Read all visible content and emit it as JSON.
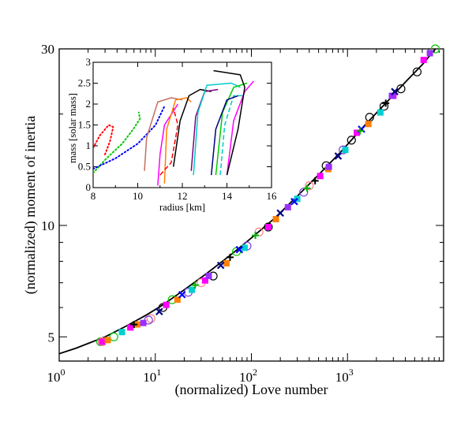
{
  "chart_data": [
    {
      "type": "scatter",
      "title": "",
      "xlabel": "(normalized) Love number",
      "ylabel": "(normalized) moment of inertia",
      "x_scale": "log",
      "y_scale": "log",
      "xlim": [
        1,
        10000
      ],
      "ylim": [
        4.3,
        30
      ],
      "x_ticks": [
        {
          "value": 1,
          "base": "10",
          "exp": "0"
        },
        {
          "value": 10,
          "base": "10",
          "exp": "1"
        },
        {
          "value": 100,
          "base": "10",
          "exp": "2"
        },
        {
          "value": 1000,
          "base": "10",
          "exp": "3"
        }
      ],
      "y_ticks": [
        {
          "value": 5,
          "label": "5"
        },
        {
          "value": 10,
          "label": "10"
        },
        {
          "value": 30,
          "label": "30"
        }
      ],
      "fit_curve": {
        "color": "#000000",
        "x": [
          1,
          1.5,
          2,
          3,
          5,
          8,
          12,
          20,
          35,
          60,
          100,
          170,
          300,
          500,
          850,
          1500,
          2500,
          4000,
          6000,
          8500
        ],
        "y": [
          4.5,
          4.66,
          4.8,
          5.0,
          5.35,
          5.72,
          6.1,
          6.7,
          7.45,
          8.3,
          9.25,
          10.4,
          12.0,
          13.7,
          15.8,
          18.6,
          21.4,
          24.4,
          27.2,
          30.3
        ]
      },
      "series": [
        {
          "marker": "circle-open",
          "color": "#000000",
          "x": [
            12,
            40,
            150,
            600,
            1100,
            1700,
            2400,
            3600,
            5300
          ],
          "y": [
            6.0,
            7.3,
            9.9,
            14.5,
            17.0,
            19.6,
            21.0,
            23.4,
            26.0
          ]
        },
        {
          "marker": "circle-open",
          "color": "#00c800",
          "x": [
            2.7,
            3.7,
            15,
            70,
            8200
          ],
          "y": [
            4.85,
            5.0,
            6.3,
            8.5,
            30.0
          ]
        },
        {
          "marker": "circle-open",
          "color": "#ff8080",
          "x": [
            2.8,
            9,
            30,
            120,
            400
          ],
          "y": [
            4.85,
            5.6,
            7.0,
            9.6,
            12.8
          ]
        },
        {
          "marker": "circle-open",
          "color": "#7b3fe0",
          "x": [
            8.5,
            22,
            90,
            350,
            900
          ],
          "y": [
            5.55,
            6.6,
            8.8,
            12.3,
            16.0
          ]
        },
        {
          "marker": "square-filled",
          "color": "#ff00ff",
          "x": [
            2.8,
            5.5,
            13,
            33,
            150,
            520,
            1250,
            3000,
            6200
          ],
          "y": [
            4.85,
            5.3,
            6.1,
            7.1,
            9.9,
            13.6,
            17.8,
            22.4,
            28.0
          ]
        },
        {
          "marker": "square-filled",
          "color": "#ff8000",
          "x": [
            3.2,
            6.5,
            17,
            55,
            180,
            630,
            1650
          ],
          "y": [
            4.9,
            5.4,
            6.3,
            7.9,
            10.4,
            14.2,
            18.8
          ]
        },
        {
          "marker": "square-filled",
          "color": "#00d0d0",
          "x": [
            4.5,
            24,
            85,
            300,
            950,
            2200
          ],
          "y": [
            5.15,
            6.7,
            8.7,
            11.8,
            16.0,
            20.2
          ]
        },
        {
          "marker": "square-filled",
          "color": "#9b30ff",
          "x": [
            7.5,
            36,
            240,
            640,
            2900,
            7200
          ],
          "y": [
            5.45,
            7.3,
            11.2,
            14.4,
            22.4,
            29.2
          ]
        },
        {
          "marker": "x-cross",
          "color": "#000080",
          "x": [
            11,
            48,
            200,
            800,
            3100
          ],
          "y": [
            5.85,
            7.8,
            10.8,
            15.4,
            23.0
          ]
        },
        {
          "marker": "x-cross",
          "color": "#0000ff",
          "x": [
            19,
            75,
            280,
            1400
          ],
          "y": [
            6.5,
            8.6,
            11.6,
            18.2
          ]
        },
        {
          "marker": "plus",
          "color": "#00b000",
          "x": [
            26,
            110,
            380,
            1350
          ],
          "y": [
            6.9,
            9.4,
            12.6,
            18.0
          ]
        },
        {
          "marker": "plus",
          "color": "#000000",
          "x": [
            6,
            60,
            460,
            2500
          ],
          "y": [
            5.4,
            8.2,
            13.2,
            21.4
          ]
        }
      ]
    },
    {
      "type": "line",
      "title": "",
      "xlabel": "radius [km]",
      "ylabel": "mass [solar mass]",
      "xlim": [
        8,
        16
      ],
      "ylim": [
        0,
        3
      ],
      "x_ticks": [
        "8",
        "10",
        "12",
        "14",
        "16"
      ],
      "y_ticks": [
        "0",
        "0.5",
        "1",
        "1.5",
        "2",
        "2.5",
        "3"
      ],
      "series": [
        {
          "color": "#ff0000",
          "style": "dotted",
          "x": [
            8.0,
            8.3,
            8.7,
            8.9,
            8.75,
            8.5
          ],
          "y": [
            0.95,
            1.25,
            1.5,
            1.45,
            1.1,
            0.75
          ]
        },
        {
          "color": "#00cc00",
          "style": "dotted",
          "x": [
            8.0,
            8.6,
            9.3,
            9.8,
            10.1,
            10.05
          ],
          "y": [
            0.35,
            0.7,
            1.05,
            1.4,
            1.65,
            1.8
          ]
        },
        {
          "color": "#0000ff",
          "style": "dotted",
          "x": [
            8.0,
            9.0,
            10.0,
            10.8,
            11.2
          ],
          "y": [
            0.45,
            0.7,
            1.05,
            1.5,
            1.95
          ]
        },
        {
          "color": "#c07060",
          "style": "solid",
          "x": [
            10.3,
            10.4,
            10.9,
            11.5,
            12.0
          ],
          "y": [
            0.4,
            1.2,
            2.05,
            2.15,
            2.1
          ]
        },
        {
          "color": "#ff00ff",
          "style": "solid",
          "x": [
            10.9,
            11.0,
            11.2,
            11.8
          ],
          "y": [
            0.05,
            0.8,
            1.5,
            2.0
          ]
        },
        {
          "color": "#ff8000",
          "style": "solid",
          "x": [
            11.2,
            11.3,
            11.7,
            12.2,
            12.4
          ],
          "y": [
            0.1,
            1.4,
            2.1,
            2.15,
            2.05
          ]
        },
        {
          "color": "#ff0000",
          "style": "dashed",
          "x": [
            11.0,
            11.5,
            11.8,
            11.6
          ],
          "y": [
            0.3,
            0.6,
            1.5,
            1.9
          ]
        },
        {
          "color": "#000000",
          "style": "solid",
          "x": [
            11.6,
            11.9,
            12.3,
            12.8,
            13.3
          ],
          "y": [
            0.5,
            1.6,
            2.2,
            2.35,
            2.3
          ]
        },
        {
          "color": "#800080",
          "style": "solid",
          "x": [
            12.4,
            12.6,
            13.0,
            13.6
          ],
          "y": [
            0.4,
            1.7,
            2.3,
            2.35
          ]
        },
        {
          "color": "#00cccc",
          "style": "solid",
          "x": [
            12.5,
            12.7,
            13.1,
            14.2,
            14.6
          ],
          "y": [
            0.3,
            1.8,
            2.45,
            2.5,
            2.4
          ]
        },
        {
          "color": "#00cccc",
          "style": "dashed",
          "x": [
            13.7,
            13.9,
            14.3,
            14.7
          ],
          "y": [
            0.3,
            1.5,
            2.2,
            2.2
          ]
        },
        {
          "color": "#00cc00",
          "style": "solid",
          "x": [
            13.5,
            13.8,
            14.3,
            14.9
          ],
          "y": [
            0.3,
            1.8,
            2.4,
            2.5
          ]
        },
        {
          "color": "#ff00ff",
          "style": "solid",
          "x": [
            14.0,
            14.3,
            14.8,
            15.2
          ],
          "y": [
            0.3,
            1.6,
            2.3,
            2.55
          ]
        },
        {
          "color": "#000000",
          "style": "solid",
          "x": [
            14.0,
            14.5,
            14.8,
            14.6,
            13.4
          ],
          "y": [
            0.3,
            1.4,
            2.4,
            2.7,
            2.8
          ]
        },
        {
          "color": "#000080",
          "style": "solid",
          "x": [
            13.3,
            13.5,
            14.0,
            14.5
          ],
          "y": [
            0.3,
            1.4,
            2.1,
            2.2
          ]
        }
      ]
    }
  ]
}
